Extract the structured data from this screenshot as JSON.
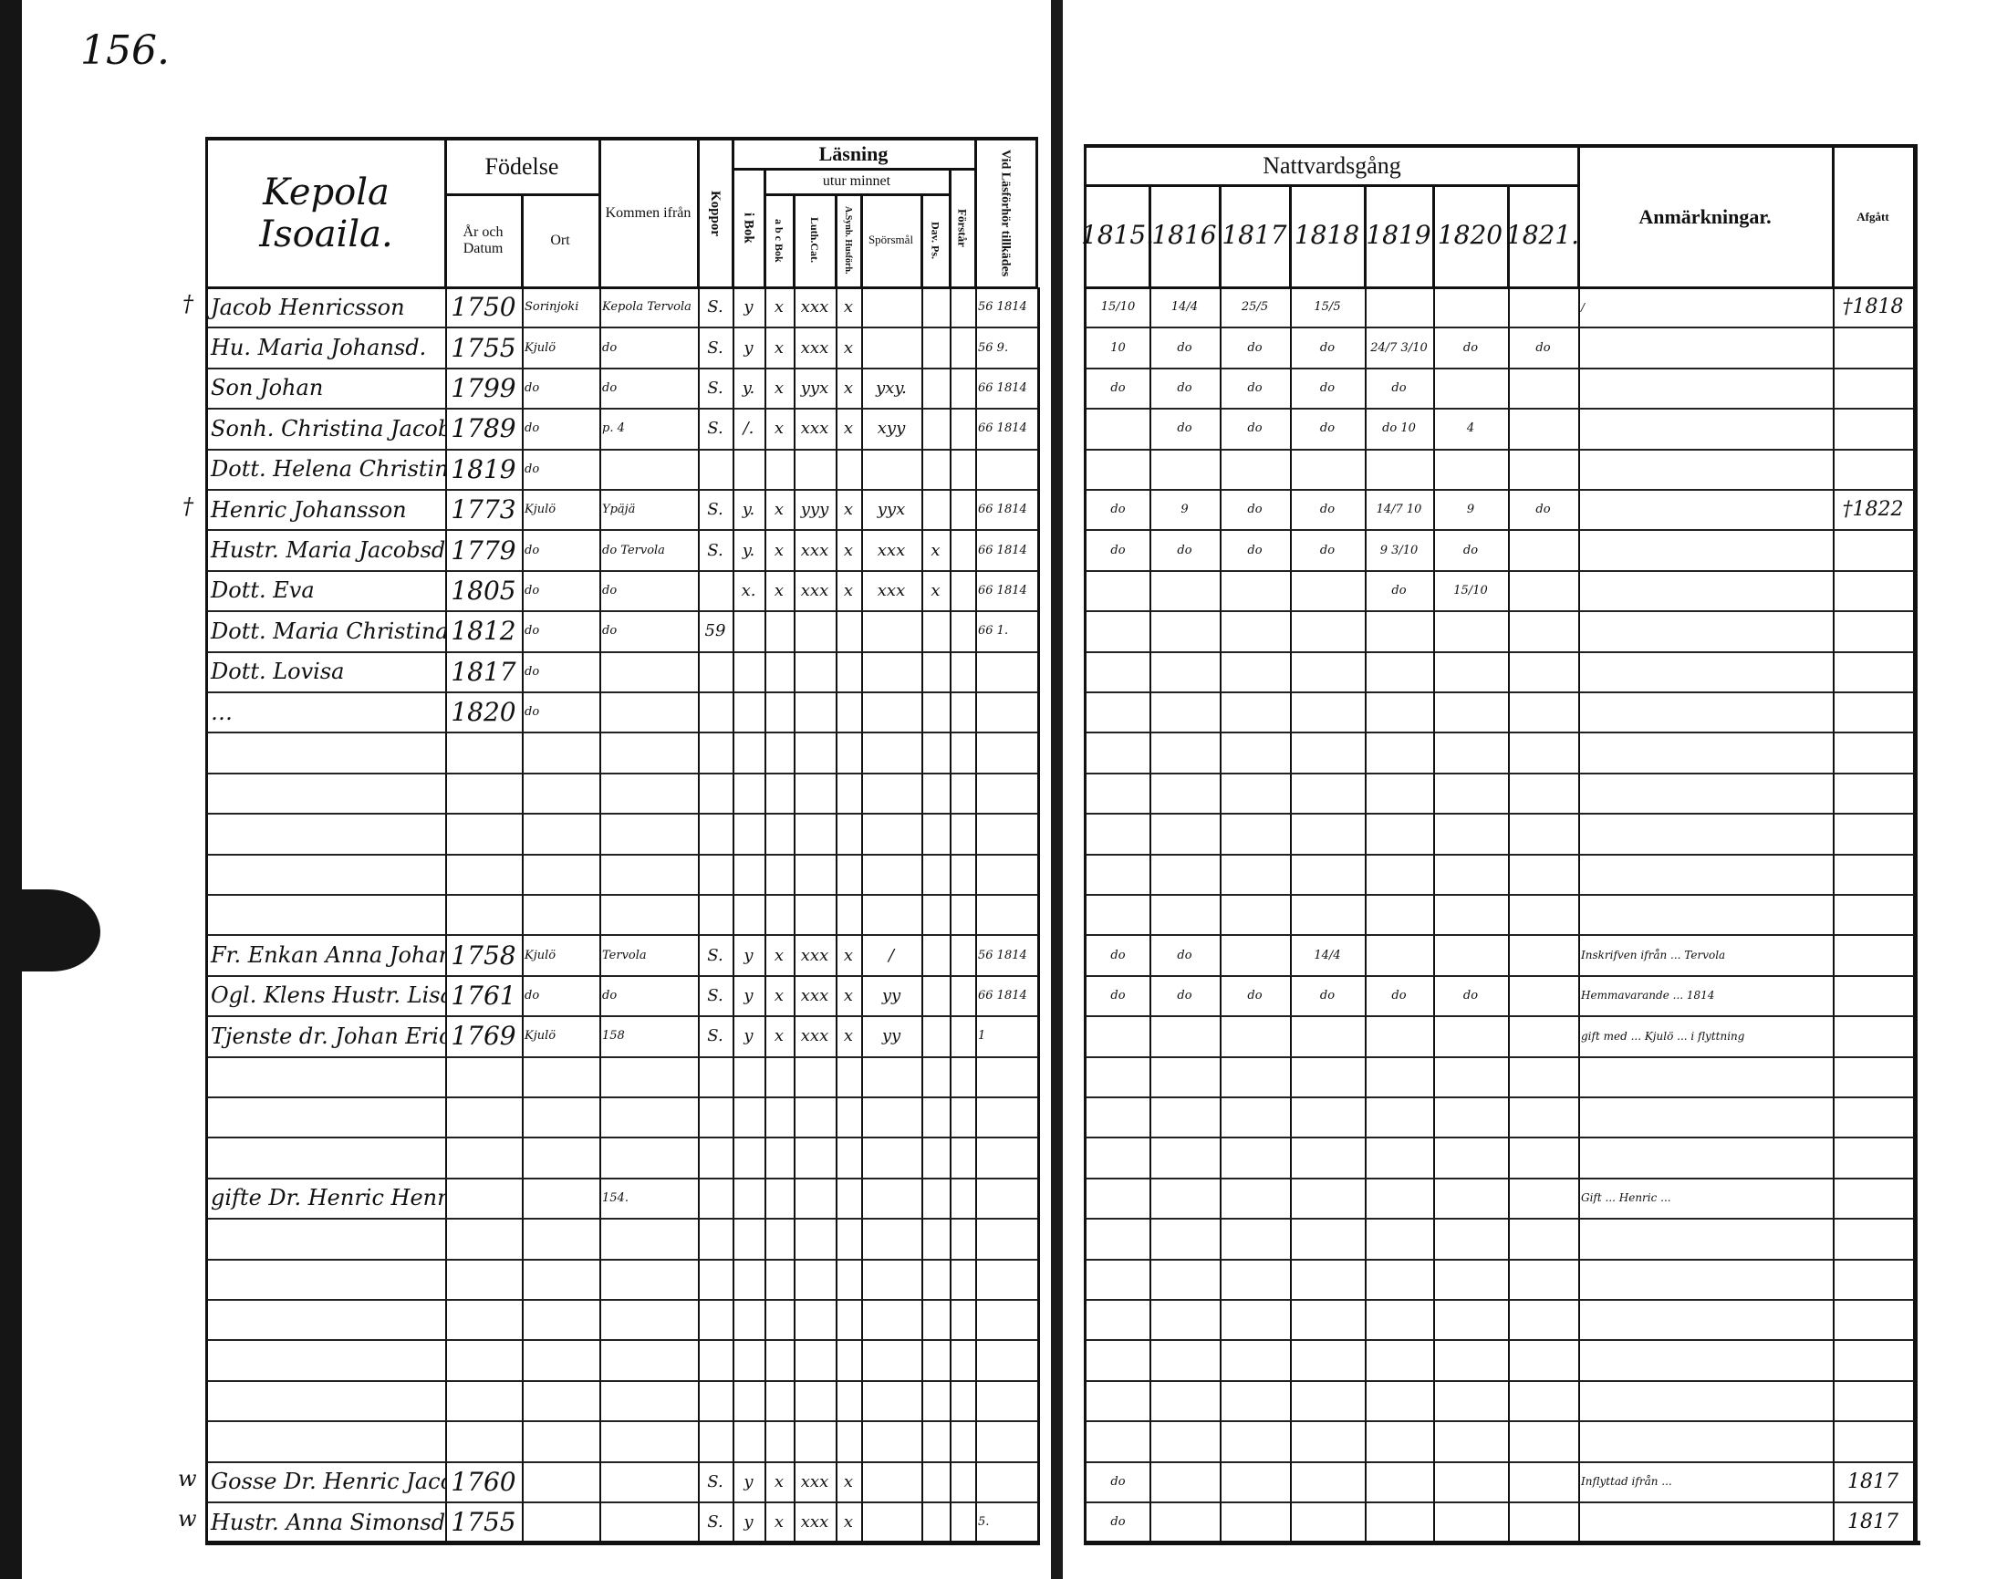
{
  "page_number": "156.",
  "left_page": {
    "village": [
      "Kepola",
      "Isoaila."
    ],
    "headers": {
      "birth": "Födelse",
      "year_date": "År och Datum",
      "place": "Ort",
      "came_from": "Kommen ifrån",
      "smallpox": "Koppor",
      "reading": "Läsning",
      "from_memory": "utur minnet",
      "in_book": "i Bok",
      "abc_book": "a b c Bok",
      "luth_cat": "Luth.Cat.",
      "husforhor": "A.Synb. Husförh.",
      "questions": "Spörsmål",
      "dav_ps": "Dav. Ps.",
      "understands": "Förstår",
      "examination": "Vid Läsförhör tillkädes"
    },
    "rows": [
      {
        "mark": "†",
        "name": "Jacob Henricsson",
        "date": "1750",
        "place": "Sorinjoki",
        "from": "Kepola Tervola",
        "koppor": "S.",
        "i_bok": "y",
        "abc_bok": "x",
        "luth_cat": "xxx",
        "husforhor": "x",
        "sporsmal": "",
        "dav_ps": "",
        "forstar": "",
        "lasforhor": "56 1814"
      },
      {
        "name": "Hu. Maria Johansd.",
        "date": "1755",
        "place": "Kjulö",
        "from": "do",
        "koppor": "S.",
        "i_bok": "y",
        "abc_bok": "x",
        "luth_cat": "xxx",
        "husforhor": "x",
        "lasforhor": "56 9."
      },
      {
        "name": "Son Johan",
        "date": "1799",
        "place": "do",
        "from": "do",
        "koppor": "S.",
        "i_bok": "y.",
        "abc_bok": "x",
        "luth_cat": "yyx",
        "husforhor": "x",
        "sporsmal": "yxy.",
        "lasforhor": "66 1814"
      },
      {
        "name": "Sonh. Christina Jacobsd.",
        "date": "1789",
        "place": "do",
        "from": "p. 4",
        "koppor": "S.",
        "i_bok": "/.",
        "abc_bok": "x",
        "luth_cat": "xxx",
        "husforhor": "x",
        "sporsmal": "xyy",
        "lasforhor": "66 1814"
      },
      {
        "name": "Dott. Helena Christina",
        "date": "1819",
        "place": "do"
      },
      {
        "mark": "†",
        "name": "Henric Johansson",
        "date": "1773",
        "place": "Kjulö",
        "from": "Ypäjä",
        "koppor": "S.",
        "i_bok": "y.",
        "abc_bok": "x",
        "luth_cat": "yyy",
        "husforhor": "x",
        "sporsmal": "yyx",
        "lasforhor": "66 1814"
      },
      {
        "name": "Hustr. Maria Jacobsd.",
        "date": "1779",
        "place": "do",
        "from": "do Tervola",
        "koppor": "S.",
        "i_bok": "y.",
        "abc_bok": "x",
        "luth_cat": "xxx",
        "husforhor": "x",
        "sporsmal": "xxx",
        "dav_ps": "x",
        "lasforhor": "66 1814"
      },
      {
        "name": "Dott. Eva",
        "date": "1805",
        "place": "do",
        "from": "do",
        "i_bok": "x.",
        "abc_bok": "x",
        "luth_cat": "xxx",
        "husforhor": "x",
        "sporsmal": "xxx",
        "dav_ps": "x",
        "lasforhor": "66 1814"
      },
      {
        "name": "Dott. Maria Christina",
        "date": "1812",
        "place": "do",
        "from": "do",
        "koppor": "59",
        "lasforhor": "66 1."
      },
      {
        "name": "Dott. Lovisa",
        "date": "1817",
        "place": "do"
      },
      {
        "name": "…",
        "date": "1820",
        "place": "do"
      },
      {},
      {},
      {},
      {},
      {},
      {
        "name": "Fr. Enkan Anna Johansd.",
        "date": "1758",
        "place": "Kjulö",
        "from": "Tervola",
        "koppor": "S.",
        "i_bok": "y",
        "abc_bok": "x",
        "luth_cat": "xxx",
        "husforhor": "x",
        "sporsmal": "/",
        "lasforhor": "56 1814"
      },
      {
        "name": "Ogl. Klens Hustr. Lisa Johansd.",
        "date": "1761",
        "place": "do",
        "from": "do",
        "koppor": "S.",
        "i_bok": "y",
        "abc_bok": "x",
        "luth_cat": "xxx",
        "husforhor": "x",
        "sporsmal": "yy",
        "lasforhor": "66 1814"
      },
      {
        "name": "Tjenste dr. Johan Eric",
        "date": "1769",
        "place": "Kjulö",
        "from": "158",
        "koppor": "S.",
        "i_bok": "y",
        "abc_bok": "x",
        "luth_cat": "xxx",
        "husforhor": "x",
        "sporsmal": "yy",
        "lasforhor": "1"
      },
      {},
      {},
      {},
      {
        "name": "gifte Dr. Henric Henricsson",
        "from": "154."
      },
      {},
      {},
      {},
      {},
      {},
      {},
      {
        "mark": "w",
        "name": "Gosse Dr. Henric Jacobsson",
        "date": "1760",
        "koppor": "S.",
        "i_bok": "y",
        "abc_bok": "x",
        "luth_cat": "xxx",
        "husforhor": "x"
      },
      {
        "mark": "w",
        "name": "Hustr. Anna Simonsd.",
        "date": "1755",
        "koppor": "S.",
        "i_bok": "y",
        "abc_bok": "x",
        "luth_cat": "xxx",
        "husforhor": "x",
        "lasforhor": "5."
      }
    ]
  },
  "right_page": {
    "headers": {
      "communion": "Nattvardsgång",
      "years": [
        "1815.",
        "1816",
        "1817",
        "1818",
        "1819",
        "1820",
        "1821."
      ],
      "remarks": "Anmärkningar.",
      "departed": "Afgått"
    },
    "rows": [
      {
        "communion": [
          "15/10",
          "14/4",
          "25/5",
          "15/5",
          "",
          "",
          ""
        ],
        "remarks": "/",
        "departed": "†1818"
      },
      {
        "communion": [
          "10",
          "do",
          "do",
          "do",
          "24/7 3/10",
          "do",
          "do"
        ]
      },
      {
        "communion": [
          "do",
          "do",
          "do",
          "do",
          "do",
          "",
          ""
        ]
      },
      {
        "communion": [
          "",
          "do",
          "do",
          "do",
          "do 10",
          "4",
          ""
        ]
      },
      {},
      {
        "communion": [
          "do",
          "9",
          "do",
          "do",
          "14/7 10",
          "9",
          "do"
        ],
        "departed": "†1822"
      },
      {
        "communion": [
          "do",
          "do",
          "do",
          "do",
          "9 3/10",
          "do",
          ""
        ]
      },
      {
        "communion": [
          "",
          "",
          "",
          "",
          "do",
          "15/10",
          ""
        ]
      },
      {},
      {},
      {},
      {},
      {},
      {},
      {},
      {},
      {
        "communion": [
          "do",
          "do",
          "",
          "14/4",
          "",
          "",
          ""
        ],
        "remarks": "Inskrifven ifrån ... Tervola"
      },
      {
        "communion": [
          "do",
          "do",
          "do",
          "do",
          "do",
          "do",
          ""
        ],
        "remarks": "Hemmavarande ... 1814"
      },
      {
        "remarks": "gift med ... Kjulö ... i flyttning"
      },
      {},
      {},
      {},
      {
        "remarks": "Gift ... Henric ..."
      },
      {},
      {},
      {},
      {},
      {},
      {},
      {
        "communion": [
          "do",
          "",
          "",
          "",
          "",
          "",
          ""
        ],
        "remarks": "Inflyttad ifrån ... ",
        "departed": "1817"
      },
      {
        "communion": [
          "do",
          "",
          "",
          "",
          "",
          "",
          ""
        ],
        "departed": "1817"
      }
    ]
  }
}
